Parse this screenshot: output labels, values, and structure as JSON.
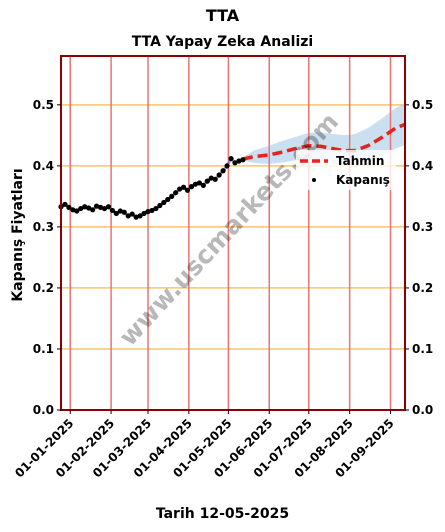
{
  "chart_data": {
    "type": "line",
    "suptitle": "TTA",
    "title": "TTA Yapay Zeka Analizi",
    "xlabel": "Tarih 12-05-2025",
    "ylabel": "Kapanış Fiyatları",
    "ylim": [
      0,
      0.58
    ],
    "yticks": [
      0.0,
      0.1,
      0.2,
      0.3,
      0.4,
      0.5
    ],
    "ytick_labels": [
      "0.0",
      "0.1",
      "0.2",
      "0.3",
      "0.4",
      "0.5"
    ],
    "xlim": [
      "2024-12-25",
      "2025-09-12"
    ],
    "xticks": [
      "2025-01-01",
      "2025-02-01",
      "2025-03-01",
      "2025-04-01",
      "2025-05-01",
      "2025-06-01",
      "2025-07-01",
      "2025-08-01",
      "2025-09-01"
    ],
    "xtick_labels": [
      "01-01-2025",
      "01-02-2025",
      "01-03-2025",
      "01-04-2025",
      "01-05-2025",
      "01-06-2025",
      "01-07-2025",
      "01-08-2025",
      "01-09-2025"
    ],
    "legend": {
      "placement": "center-right",
      "entries": [
        "Tahmin",
        "Kapanış"
      ]
    },
    "watermark": "www.uscmarkets.com",
    "grid": "horizontal orange lines, vertical red lines at month starts",
    "colors": {
      "forecast": "#e8211e",
      "close": "#000000",
      "band": "#b8d4ea",
      "hgrid": "#f6c56a",
      "vgrid": "#e87474",
      "frame": "#8b0000",
      "fit": "#7b5ea7"
    },
    "series": [
      {
        "name": "Kapanış",
        "style": "points",
        "x": [
          "2024-12-25",
          "2024-12-28",
          "2024-12-31",
          "2025-01-03",
          "2025-01-06",
          "2025-01-09",
          "2025-01-12",
          "2025-01-15",
          "2025-01-18",
          "2025-01-21",
          "2025-01-24",
          "2025-01-27",
          "2025-01-30",
          "2025-02-02",
          "2025-02-05",
          "2025-02-08",
          "2025-02-11",
          "2025-02-14",
          "2025-02-17",
          "2025-02-20",
          "2025-02-23",
          "2025-02-26",
          "2025-03-01",
          "2025-03-04",
          "2025-03-07",
          "2025-03-10",
          "2025-03-13",
          "2025-03-16",
          "2025-03-19",
          "2025-03-22",
          "2025-03-25",
          "2025-03-28",
          "2025-03-31",
          "2025-04-03",
          "2025-04-06",
          "2025-04-09",
          "2025-04-12",
          "2025-04-15",
          "2025-04-18",
          "2025-04-21",
          "2025-04-24",
          "2025-04-27",
          "2025-04-30",
          "2025-05-03",
          "2025-05-06",
          "2025-05-09",
          "2025-05-12"
        ],
        "y": [
          0.333,
          0.337,
          0.332,
          0.328,
          0.326,
          0.33,
          0.333,
          0.331,
          0.328,
          0.334,
          0.332,
          0.33,
          0.333,
          0.327,
          0.322,
          0.326,
          0.324,
          0.318,
          0.321,
          0.316,
          0.318,
          0.322,
          0.325,
          0.327,
          0.33,
          0.335,
          0.34,
          0.345,
          0.35,
          0.356,
          0.362,
          0.365,
          0.36,
          0.366,
          0.37,
          0.372,
          0.368,
          0.375,
          0.38,
          0.378,
          0.385,
          0.392,
          0.4,
          0.412,
          0.405,
          0.408,
          0.41
        ]
      },
      {
        "name": "Tahmin",
        "style": "dashed",
        "x": [
          "2025-05-12",
          "2025-05-20",
          "2025-06-01",
          "2025-06-10",
          "2025-06-20",
          "2025-07-01",
          "2025-07-10",
          "2025-07-20",
          "2025-07-28",
          "2025-08-05",
          "2025-08-15",
          "2025-08-25",
          "2025-09-05",
          "2025-09-12"
        ],
        "y": [
          0.411,
          0.415,
          0.418,
          0.422,
          0.428,
          0.433,
          0.432,
          0.428,
          0.425,
          0.425,
          0.433,
          0.446,
          0.462,
          0.468
        ],
        "band_low": [
          0.408,
          0.405,
          0.403,
          0.405,
          0.409,
          0.412,
          0.409,
          0.404,
          0.4,
          0.398,
          0.404,
          0.415,
          0.429,
          0.434
        ],
        "band_high": [
          0.414,
          0.425,
          0.433,
          0.44,
          0.447,
          0.454,
          0.455,
          0.452,
          0.45,
          0.452,
          0.462,
          0.477,
          0.495,
          0.502
        ]
      }
    ]
  }
}
